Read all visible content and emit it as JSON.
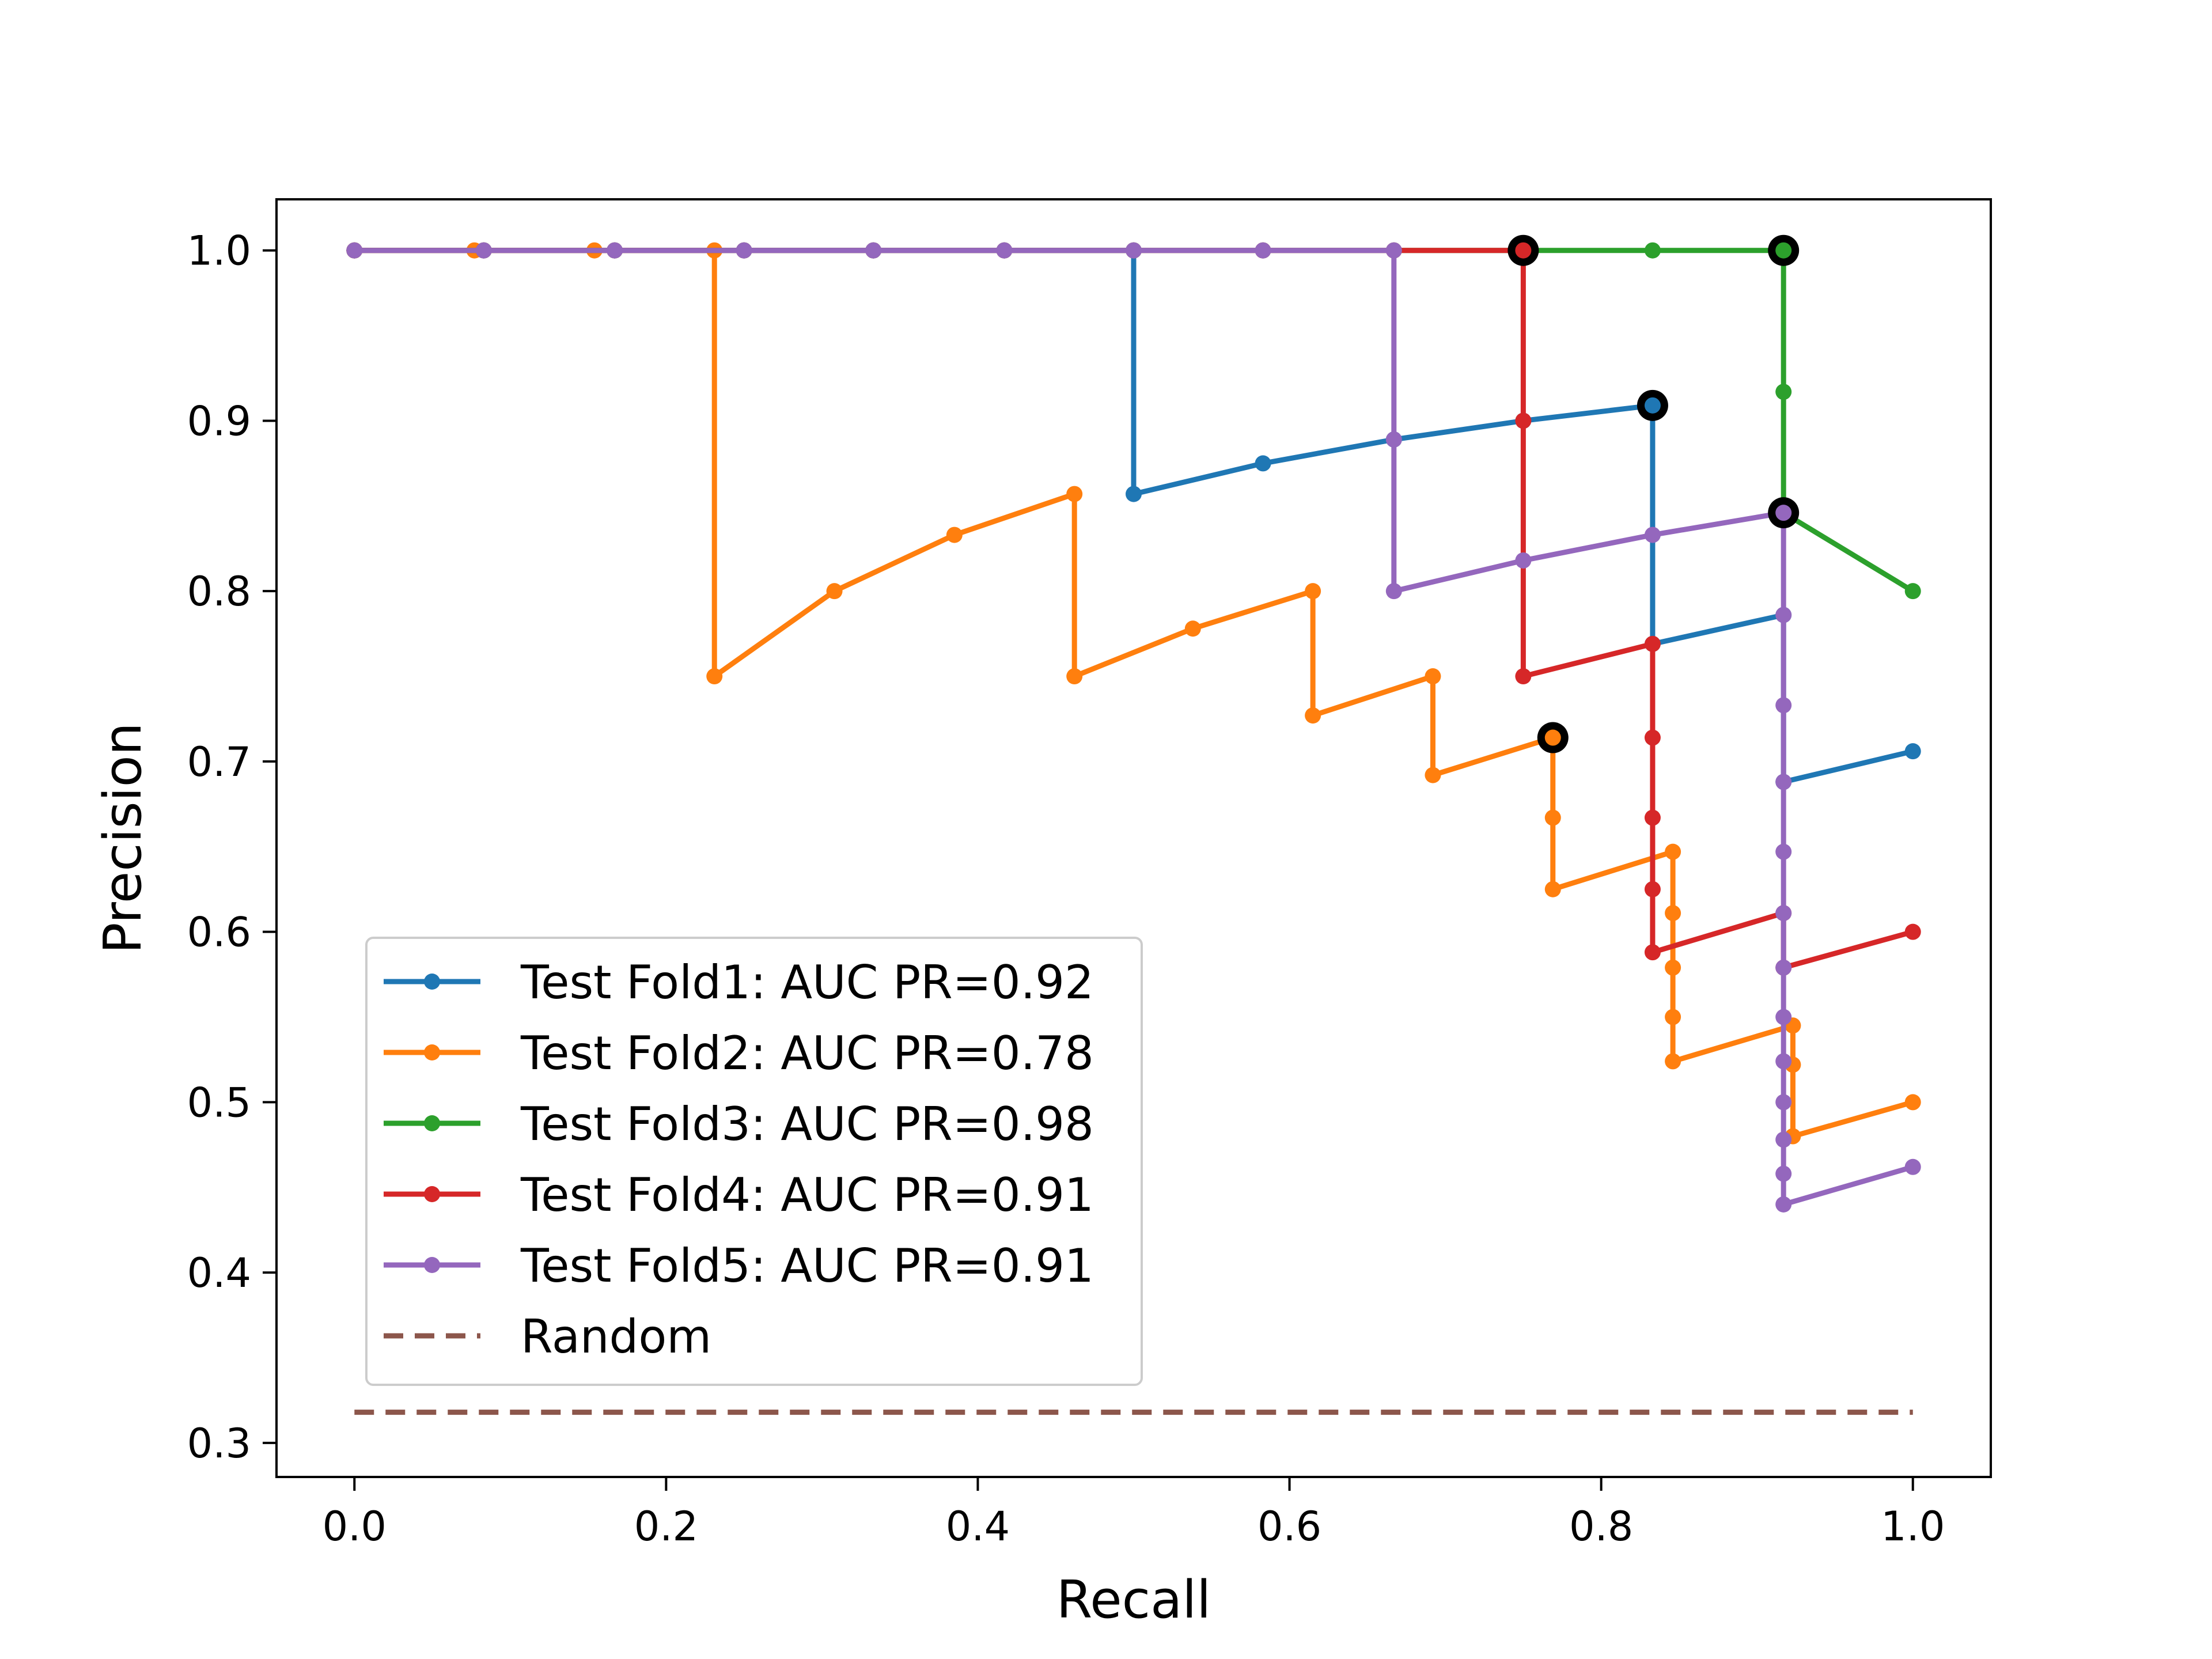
{
  "chart_data": {
    "type": "line",
    "xlabel": "Recall",
    "ylabel": "Precision",
    "xlim": [
      -0.05,
      1.05
    ],
    "ylim": [
      0.28,
      1.03
    ],
    "xticks": [
      {
        "value": 0.0,
        "label": "0.0"
      },
      {
        "value": 0.2,
        "label": "0.2"
      },
      {
        "value": 0.4,
        "label": "0.4"
      },
      {
        "value": 0.6,
        "label": "0.6"
      },
      {
        "value": 0.8,
        "label": "0.8"
      },
      {
        "value": 1.0,
        "label": "1.0"
      }
    ],
    "yticks": [
      {
        "value": 0.3,
        "label": "0.3"
      },
      {
        "value": 0.4,
        "label": "0.4"
      },
      {
        "value": 0.5,
        "label": "0.5"
      },
      {
        "value": 0.6,
        "label": "0.6"
      },
      {
        "value": 0.7,
        "label": "0.7"
      },
      {
        "value": 0.8,
        "label": "0.8"
      },
      {
        "value": 0.9,
        "label": "0.9"
      },
      {
        "value": 1.0,
        "label": "1.0"
      }
    ],
    "grid": false,
    "legend_position": "lower-left",
    "series": [
      {
        "name": "Test Fold1: AUC PR=0.92",
        "color": "#1f77b4",
        "x": [
          0.0,
          0.083,
          0.167,
          0.25,
          0.333,
          0.417,
          0.5,
          0.5,
          0.583,
          0.667,
          0.75,
          0.833,
          0.833,
          0.917,
          0.917,
          1.0
        ],
        "y": [
          1.0,
          1.0,
          1.0,
          1.0,
          1.0,
          1.0,
          1.0,
          0.857,
          0.875,
          0.889,
          0.9,
          0.909,
          0.769,
          0.786,
          0.688,
          0.706
        ],
        "best": [
          0.833,
          0.909
        ]
      },
      {
        "name": "Test Fold2: AUC PR=0.78",
        "color": "#ff7f0e",
        "x": [
          0.0,
          0.077,
          0.154,
          0.231,
          0.231,
          0.308,
          0.385,
          0.462,
          0.462,
          0.538,
          0.615,
          0.615,
          0.692,
          0.692,
          0.769,
          0.769,
          0.769,
          0.846,
          0.846,
          0.846,
          0.846,
          0.846,
          0.923,
          0.923,
          0.923,
          1.0
        ],
        "y": [
          1.0,
          1.0,
          1.0,
          1.0,
          0.75,
          0.8,
          0.833,
          0.857,
          0.75,
          0.778,
          0.8,
          0.727,
          0.75,
          0.692,
          0.714,
          0.667,
          0.625,
          0.647,
          0.611,
          0.579,
          0.55,
          0.524,
          0.545,
          0.522,
          0.48,
          0.5
        ],
        "best": [
          0.769,
          0.714
        ]
      },
      {
        "name": "Test Fold3: AUC PR=0.98",
        "color": "#2ca02c",
        "x": [
          0.0,
          0.083,
          0.167,
          0.25,
          0.333,
          0.417,
          0.5,
          0.583,
          0.667,
          0.75,
          0.833,
          0.917,
          0.917,
          0.917,
          1.0
        ],
        "y": [
          1.0,
          1.0,
          1.0,
          1.0,
          1.0,
          1.0,
          1.0,
          1.0,
          1.0,
          1.0,
          1.0,
          1.0,
          0.917,
          0.846,
          0.8
        ],
        "best": [
          0.917,
          1.0
        ]
      },
      {
        "name": "Test Fold4: AUC PR=0.91",
        "color": "#d62728",
        "x": [
          0.0,
          0.083,
          0.167,
          0.25,
          0.333,
          0.417,
          0.5,
          0.583,
          0.667,
          0.75,
          0.75,
          0.75,
          0.833,
          0.833,
          0.833,
          0.833,
          0.833,
          0.917,
          0.917,
          1.0
        ],
        "y": [
          1.0,
          1.0,
          1.0,
          1.0,
          1.0,
          1.0,
          1.0,
          1.0,
          1.0,
          1.0,
          0.9,
          0.75,
          0.769,
          0.714,
          0.667,
          0.625,
          0.588,
          0.611,
          0.579,
          0.6
        ],
        "best": [
          0.75,
          1.0
        ]
      },
      {
        "name": "Test Fold5: AUC PR=0.91",
        "color": "#9467bd",
        "x": [
          0.0,
          0.083,
          0.167,
          0.25,
          0.333,
          0.417,
          0.5,
          0.583,
          0.667,
          0.667,
          0.667,
          0.75,
          0.833,
          0.917,
          0.917,
          0.917,
          0.917,
          0.917,
          0.917,
          0.917,
          0.917,
          0.917,
          0.917,
          0.917,
          0.917,
          0.917,
          1.0
        ],
        "y": [
          1.0,
          1.0,
          1.0,
          1.0,
          1.0,
          1.0,
          1.0,
          1.0,
          1.0,
          0.889,
          0.8,
          0.818,
          0.833,
          0.846,
          0.786,
          0.733,
          0.688,
          0.647,
          0.611,
          0.579,
          0.55,
          0.524,
          0.5,
          0.478,
          0.458,
          0.44,
          0.462
        ],
        "best": [
          0.917,
          0.846
        ]
      }
    ],
    "baseline": {
      "name": "Random",
      "color": "#8c564b",
      "style": "dashed",
      "x": [
        0.0,
        1.0
      ],
      "y": [
        0.318,
        0.318
      ]
    }
  }
}
